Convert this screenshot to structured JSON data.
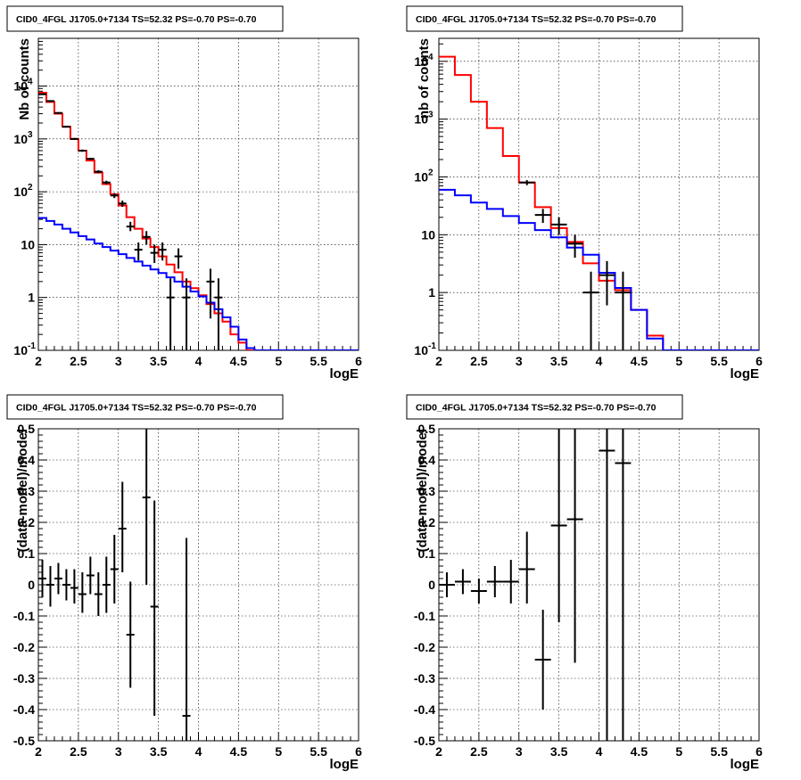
{
  "chart_data": [
    {
      "type": "line",
      "title": "CID0_4FGL J1705.0+7134 TS=52.32 PS=-0.70 PS=-0.70",
      "xlabel": "logE",
      "ylabel": "Nb of counts",
      "xlim": [
        2,
        6
      ],
      "ylim": [
        0.1,
        80000
      ],
      "yscale": "log",
      "grid": true,
      "xticks": [
        "2",
        "2.5",
        "3",
        "3.5",
        "4",
        "4.5",
        "5",
        "5.5",
        "6"
      ],
      "yticks": [
        {
          "v": 0.1,
          "label": "10",
          "exp": "-1"
        },
        {
          "v": 1,
          "label": "1",
          "exp": ""
        },
        {
          "v": 10,
          "label": "10",
          "exp": ""
        },
        {
          "v": 100,
          "label": "10",
          "exp": "2"
        },
        {
          "v": 1000,
          "label": "10",
          "exp": "3"
        },
        {
          "v": 10000,
          "label": "10",
          "exp": "4"
        }
      ],
      "series": [
        {
          "color": "#ff0000",
          "kind": "step",
          "edges": [
            2.0,
            2.1,
            2.2,
            2.3,
            2.4,
            2.5,
            2.6,
            2.7,
            2.8,
            2.9,
            3.0,
            3.1,
            3.2,
            3.3,
            3.4,
            3.5,
            3.6,
            3.7,
            3.8,
            3.9,
            4.0,
            4.1,
            4.2,
            4.3,
            4.4,
            4.5,
            4.6,
            4.7,
            4.8,
            4.9,
            5.0,
            5.1,
            5.2,
            5.3,
            5.4,
            5.5,
            5.6,
            5.7,
            5.8,
            5.9,
            6.0
          ],
          "values": [
            7500,
            5000,
            3000,
            1700,
            1000,
            600,
            390,
            230,
            140,
            90,
            55,
            33,
            20,
            13,
            9,
            6,
            4.2,
            3,
            2,
            1.5,
            1.1,
            0.75,
            0.5,
            0.35,
            0.2,
            0.14,
            0.1,
            0.1,
            0.1,
            0.1,
            0.1,
            0.1,
            0.1,
            0.1,
            0.1,
            0.1,
            0.1,
            0.1,
            0.1,
            0.1
          ]
        },
        {
          "color": "#0000ff",
          "kind": "step",
          "edges": [
            2.0,
            2.1,
            2.2,
            2.3,
            2.4,
            2.5,
            2.6,
            2.7,
            2.8,
            2.9,
            3.0,
            3.1,
            3.2,
            3.3,
            3.4,
            3.5,
            3.6,
            3.7,
            3.8,
            3.9,
            4.0,
            4.1,
            4.2,
            4.3,
            4.4,
            4.5,
            4.6,
            4.7,
            4.8,
            4.9,
            5.0,
            5.1,
            5.2,
            5.3,
            5.4,
            5.5,
            5.6,
            5.7,
            5.8,
            5.9,
            6.0
          ],
          "values": [
            32,
            28,
            24,
            20,
            17,
            14.5,
            12.5,
            10.5,
            9,
            7.7,
            6.6,
            5.6,
            4.8,
            4,
            3.4,
            2.9,
            2.4,
            2,
            1.6,
            1.3,
            1.05,
            0.8,
            0.6,
            0.42,
            0.28,
            0.16,
            0.11,
            0.1,
            0.1,
            0.1,
            0.1,
            0.1,
            0.1,
            0.1,
            0.1,
            0.1,
            0.1,
            0.1,
            0.1,
            0.1
          ]
        },
        {
          "color": "#000000",
          "kind": "errorbar",
          "xerr": 0.05,
          "x": [
            2.05,
            2.15,
            2.25,
            2.35,
            2.45,
            2.55,
            2.65,
            2.75,
            2.85,
            2.95,
            3.05,
            3.15,
            3.25,
            3.35,
            3.45,
            3.55,
            3.65,
            3.75,
            3.85,
            4.15,
            4.25
          ],
          "y": [
            7000,
            5200,
            3100,
            1700,
            1000,
            600,
            420,
            240,
            150,
            85,
            60,
            22,
            8,
            14,
            7,
            8,
            1,
            6,
            1,
            2,
            1
          ],
          "ylo": [
            6800,
            5000,
            3000,
            1650,
            960,
            570,
            400,
            225,
            138,
            76,
            52,
            18,
            5,
            10,
            4.5,
            5,
            0.1,
            3.5,
            0.1,
            0.4,
            0.1
          ],
          "yhi": [
            7200,
            5400,
            3200,
            1750,
            1040,
            630,
            440,
            255,
            162,
            94,
            68,
            27,
            11,
            18,
            10,
            11,
            2.3,
            8.5,
            2.3,
            3.5,
            2.3
          ]
        }
      ]
    },
    {
      "type": "line",
      "title": "CID0_4FGL J1705.0+7134 TS=52.32 PS=-0.70 PS=-0.70",
      "xlabel": "logE",
      "ylabel": "nb of counts",
      "xlim": [
        2,
        6
      ],
      "ylim": [
        0.1,
        25000
      ],
      "yscale": "log",
      "grid": true,
      "xticks": [
        "2",
        "2.5",
        "3",
        "3.5",
        "4",
        "4.5",
        "5",
        "5.5",
        "6"
      ],
      "yticks": [
        {
          "v": 0.1,
          "label": "10",
          "exp": "-1"
        },
        {
          "v": 1,
          "label": "1",
          "exp": ""
        },
        {
          "v": 10,
          "label": "10",
          "exp": ""
        },
        {
          "v": 100,
          "label": "10",
          "exp": "2"
        },
        {
          "v": 1000,
          "label": "10",
          "exp": "3"
        },
        {
          "v": 10000,
          "label": "10",
          "exp": "4"
        }
      ],
      "series": [
        {
          "color": "#ff0000",
          "kind": "step",
          "edges": [
            2.0,
            2.2,
            2.4,
            2.6,
            2.8,
            3.0,
            3.2,
            3.4,
            3.6,
            3.8,
            4.0,
            4.2,
            4.4,
            4.6,
            4.8,
            5.0,
            5.2,
            5.4,
            5.6,
            5.8,
            6.0
          ],
          "values": [
            12000,
            5800,
            2000,
            700,
            230,
            80,
            30,
            13,
            7.5,
            3.2,
            1.6,
            1.1,
            0.5,
            0.18,
            0.1,
            0.1,
            0.1,
            0.1,
            0.1,
            0.1
          ]
        },
        {
          "color": "#0000ff",
          "kind": "step",
          "edges": [
            2.0,
            2.2,
            2.4,
            2.6,
            2.8,
            3.0,
            3.2,
            3.4,
            3.6,
            3.8,
            4.0,
            4.2,
            4.4,
            4.6,
            4.8,
            5.0,
            5.2,
            5.4,
            5.6,
            5.8,
            6.0
          ],
          "values": [
            60,
            48,
            36,
            28,
            21,
            16,
            12,
            9,
            6,
            4.5,
            2.2,
            1.2,
            0.5,
            0.16,
            0.1,
            0.1,
            0.1,
            0.1,
            0.1,
            0.1
          ]
        },
        {
          "color": "#000000",
          "kind": "errorbar",
          "xerr": 0.1,
          "x": [
            3.1,
            3.3,
            3.5,
            3.7,
            3.9,
            4.1,
            4.3
          ],
          "y": [
            80,
            22,
            15,
            7,
            1,
            2,
            1
          ],
          "ylo": [
            72,
            16,
            10,
            4,
            0.1,
            0.6,
            0.1
          ],
          "yhi": [
            88,
            28,
            20,
            10,
            2.3,
            3.5,
            2.3
          ]
        }
      ]
    },
    {
      "type": "scatter",
      "title": "CID0_4FGL J1705.0+7134 TS=52.32 PS=-0.70 PS=-0.70",
      "xlabel": "logE",
      "ylabel": "(data-model)/model",
      "xlim": [
        2,
        6
      ],
      "ylim": [
        -0.5,
        0.5
      ],
      "yscale": "linear",
      "grid": true,
      "xticks": [
        "2",
        "2.5",
        "3",
        "3.5",
        "4",
        "4.5",
        "5",
        "5.5",
        "6"
      ],
      "yticks": [
        {
          "v": -0.5,
          "label": "-0.5",
          "exp": ""
        },
        {
          "v": -0.4,
          "label": "-0.4",
          "exp": ""
        },
        {
          "v": -0.3,
          "label": "-0.3",
          "exp": ""
        },
        {
          "v": -0.2,
          "label": "-0.2",
          "exp": ""
        },
        {
          "v": -0.1,
          "label": "-0.1",
          "exp": ""
        },
        {
          "v": 0,
          "label": "0",
          "exp": ""
        },
        {
          "v": 0.1,
          "label": "0.1",
          "exp": ""
        },
        {
          "v": 0.2,
          "label": "0.2",
          "exp": ""
        },
        {
          "v": 0.3,
          "label": "0.3",
          "exp": ""
        },
        {
          "v": 0.4,
          "label": "0.4",
          "exp": ""
        },
        {
          "v": 0.5,
          "label": "0.5",
          "exp": ""
        }
      ],
      "series": [
        {
          "color": "#000000",
          "kind": "errorbar",
          "xerr": 0.05,
          "x": [
            2.05,
            2.15,
            2.25,
            2.35,
            2.45,
            2.55,
            2.65,
            2.75,
            2.85,
            2.95,
            3.05,
            3.15,
            3.35,
            3.45,
            3.85
          ],
          "y": [
            0.02,
            0.0,
            0.02,
            0.0,
            -0.01,
            -0.03,
            0.03,
            -0.03,
            0.0,
            0.05,
            0.18,
            -0.16,
            0.28,
            -0.07,
            -0.42
          ],
          "ylo": [
            -0.04,
            -0.07,
            -0.03,
            -0.05,
            -0.06,
            -0.09,
            -0.03,
            -0.1,
            -0.09,
            -0.06,
            0.04,
            -0.33,
            0.0,
            -0.42,
            -0.5
          ],
          "yhi": [
            0.08,
            0.06,
            0.07,
            0.05,
            0.05,
            0.04,
            0.09,
            0.04,
            0.09,
            0.16,
            0.33,
            0.01,
            0.5,
            0.27,
            0.15
          ]
        }
      ]
    },
    {
      "type": "scatter",
      "title": "CID0_4FGL J1705.0+7134 TS=52.32 PS=-0.70 PS=-0.70",
      "xlabel": "logE",
      "ylabel": "(data-model)/model",
      "xlim": [
        2,
        6
      ],
      "ylim": [
        -0.5,
        0.5
      ],
      "yscale": "linear",
      "grid": true,
      "xticks": [
        "2",
        "2.5",
        "3",
        "3.5",
        "4",
        "4.5",
        "5",
        "5.5",
        "6"
      ],
      "yticks": [
        {
          "v": -0.5,
          "label": "-0.5",
          "exp": ""
        },
        {
          "v": -0.4,
          "label": "-0.4",
          "exp": ""
        },
        {
          "v": -0.3,
          "label": "-0.3",
          "exp": ""
        },
        {
          "v": -0.2,
          "label": "-0.2",
          "exp": ""
        },
        {
          "v": -0.1,
          "label": "-0.1",
          "exp": ""
        },
        {
          "v": 0,
          "label": "0",
          "exp": ""
        },
        {
          "v": 0.1,
          "label": "0.1",
          "exp": ""
        },
        {
          "v": 0.2,
          "label": "0.2",
          "exp": ""
        },
        {
          "v": 0.3,
          "label": "0.3",
          "exp": ""
        },
        {
          "v": 0.4,
          "label": "0.4",
          "exp": ""
        },
        {
          "v": 0.5,
          "label": "0.5",
          "exp": ""
        }
      ],
      "series": [
        {
          "color": "#000000",
          "kind": "errorbar",
          "xerr": 0.1,
          "x": [
            2.1,
            2.3,
            2.5,
            2.7,
            2.9,
            3.1,
            3.3,
            3.5,
            3.7,
            4.1,
            4.3
          ],
          "y": [
            0.0,
            0.01,
            -0.02,
            0.01,
            0.01,
            0.05,
            -0.24,
            0.19,
            0.21,
            0.43,
            0.39
          ],
          "ylo": [
            -0.04,
            -0.03,
            -0.06,
            -0.04,
            -0.06,
            -0.06,
            -0.4,
            -0.12,
            -0.25,
            -0.5,
            -0.5
          ],
          "yhi": [
            0.04,
            0.05,
            0.02,
            0.06,
            0.08,
            0.17,
            -0.08,
            0.5,
            0.5,
            0.5,
            0.5
          ]
        }
      ]
    }
  ]
}
